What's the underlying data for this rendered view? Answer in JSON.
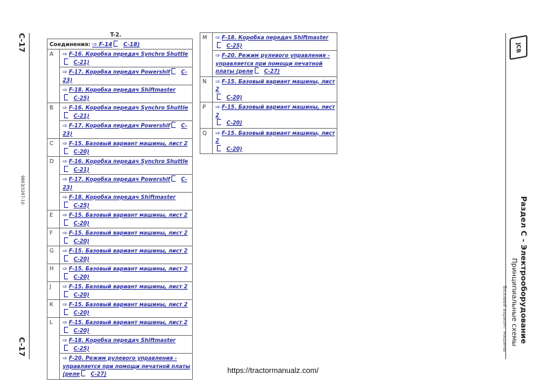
{
  "page": {
    "page_number": "C-17",
    "doc_code": "9803/3297-10",
    "section_title": "Раздел C - Электрооборудование",
    "section_subtitle": "Принципиальные схемы",
    "section_sub2": "Базовый вариант машины",
    "logo": "JCB",
    "footer_url": "https://tractormanualz.com/"
  },
  "table": {
    "title": "T-2.",
    "header_label": "Соединения:",
    "header_link": {
      "title": "F-14",
      "ref": "C-18)"
    },
    "left_rows": [
      {
        "letter": "A",
        "links": [
          {
            "title": "F-16. Коробка передач Synchro Shuttle",
            "ref": "C-21)",
            "br": true
          },
          {
            "title": "F-17. Коробка передач Powershif",
            "ref": "C-23)",
            "br": false
          },
          {
            "title": "F-18. Коробка передач Shiftmaster",
            "ref": "C-25)",
            "br": true
          }
        ]
      },
      {
        "letter": "B",
        "links": [
          {
            "title": "F-16. Коробка передач Synchro Shuttle",
            "ref": "C-21)",
            "br": true
          },
          {
            "title": "F-17. Коробка передач Powershif",
            "ref": "C-23)",
            "br": false
          }
        ]
      },
      {
        "letter": "C",
        "links": [
          {
            "title": "F-15. Базовый вариант машины, лист 2",
            "ref": "C-20)",
            "br": true
          }
        ]
      },
      {
        "letter": "D",
        "links": [
          {
            "title": "F-16. Коробка передач Synchro Shuttle",
            "ref": "C-21)",
            "br": true
          },
          {
            "title": "F-17. Коробка передач Powershif",
            "ref": "C-23)",
            "br": false
          },
          {
            "title": "F-18. Коробка передач Shiftmaster",
            "ref": "C-25)",
            "br": true
          }
        ]
      },
      {
        "letter": "E",
        "links": [
          {
            "title": "F-15. Базовый вариант машины, лист 2",
            "ref": "C-20)",
            "br": true
          }
        ]
      },
      {
        "letter": "F",
        "links": [
          {
            "title": "F-15. Базовый вариант машины, лист 2",
            "ref": "C-20)",
            "br": true
          }
        ]
      },
      {
        "letter": "G",
        "links": [
          {
            "title": "F-15. Базовый вариант машины, лист 2",
            "ref": "C-20)",
            "br": true
          }
        ]
      },
      {
        "letter": "H",
        "links": [
          {
            "title": "F-15. Базовый вариант машины, лист 2",
            "ref": "C-20)",
            "br": true
          }
        ]
      },
      {
        "letter": "J",
        "links": [
          {
            "title": "F-15. Базовый вариант машины, лист 2",
            "ref": "C-20)",
            "br": true
          }
        ]
      },
      {
        "letter": "K",
        "links": [
          {
            "title": "F-15. Базовый вариант машины, лист 2",
            "ref": "C-20)",
            "br": true
          }
        ]
      },
      {
        "letter": "L",
        "links": [
          {
            "title": "F-15. Базовый вариант машины, лист 2",
            "ref": "C-20)",
            "br": true
          },
          {
            "title": "F-18. Коробка передач Shiftmaster",
            "ref": "C-25)",
            "br": true
          },
          {
            "title": "F-20. Режим рулевого управления - управляется при помощи печатной платы (реле",
            "ref": "C-27)",
            "br": false
          }
        ]
      }
    ],
    "right_rows": [
      {
        "letter": "M",
        "links": [
          {
            "title": "F-18. Коробка передач Shiftmaster",
            "ref": "C-25)",
            "br": true
          },
          {
            "title": "F-20. Режим рулевого управления - управляется при помощи печатной платы (реле",
            "ref": "C-27)",
            "br": false
          }
        ]
      },
      {
        "letter": "N",
        "links": [
          {
            "title": "F-15. Базовый вариант машины, лист 2",
            "ref": "C-20)",
            "br": true
          }
        ]
      },
      {
        "letter": "P",
        "links": [
          {
            "title": "F-15. Базовый вариант машины, лист 2",
            "ref": "C-20)",
            "br": true
          }
        ]
      },
      {
        "letter": "Q",
        "links": [
          {
            "title": "F-15. Базовый вариант машины, лист 2",
            "ref": "C-20)",
            "br": true
          }
        ]
      }
    ]
  }
}
